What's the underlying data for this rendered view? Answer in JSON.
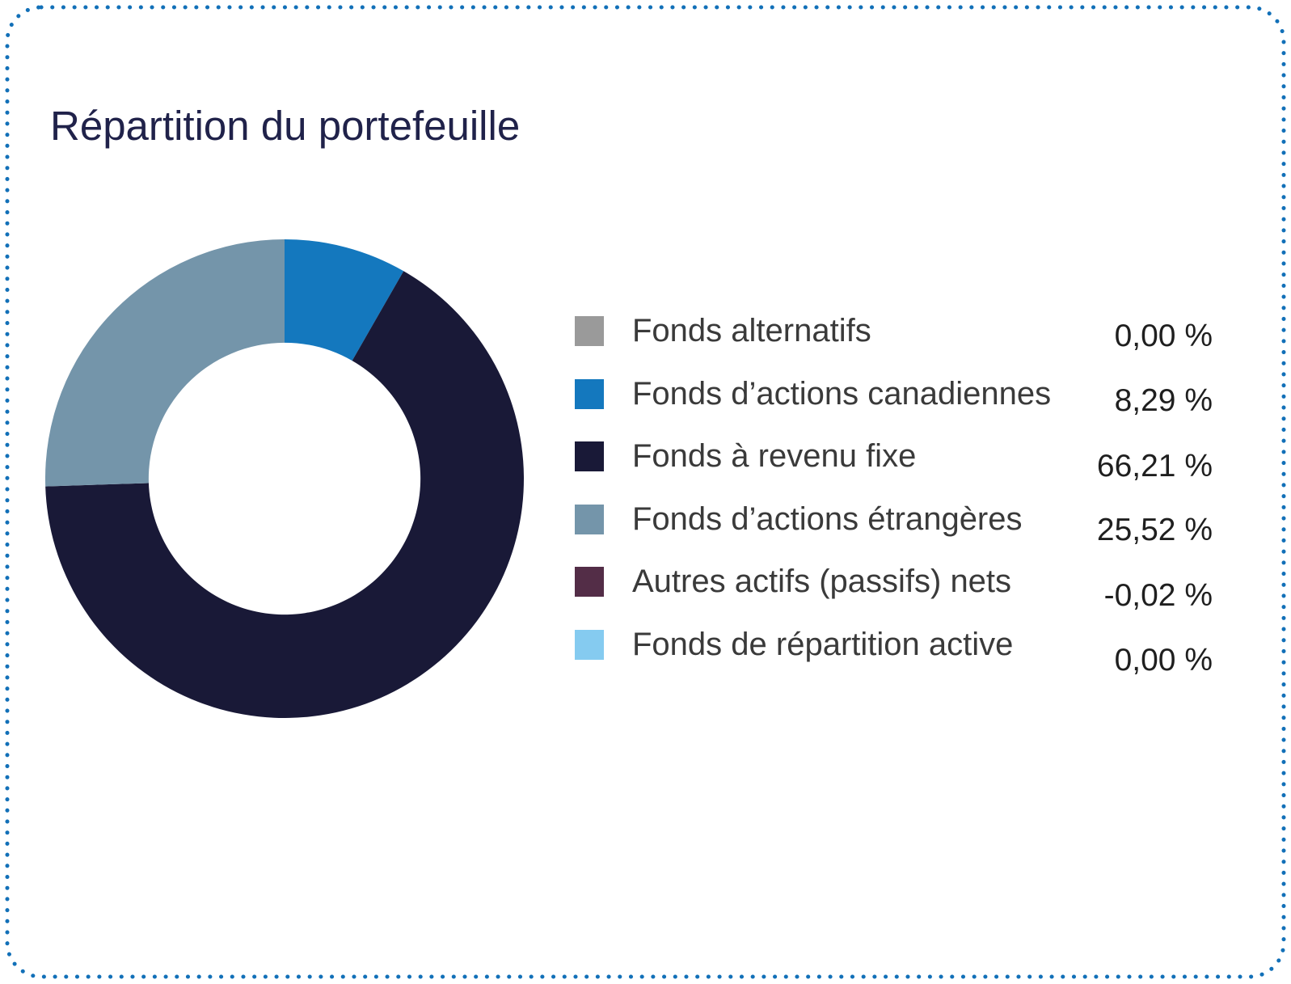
{
  "page": {
    "title": "Répartition du portefeuille"
  },
  "colors": {
    "background": "#ffffff",
    "dotted_border": "#1270b8",
    "title_text": "#20224a",
    "label_text": "#3a3a3a",
    "value_text": "#1f1f1f"
  },
  "chart_data": {
    "type": "pie",
    "subtype": "donut",
    "title": "Répartition du portefeuille",
    "start_angle_deg": 0,
    "direction": "clockwise",
    "inner_radius_ratio": 0.568,
    "legend_position": "right",
    "series": [
      {
        "label": "Fonds alternatifs",
        "value": 0.0,
        "display": "0,00 %",
        "color": "#9a9a9a"
      },
      {
        "label": "Fonds d’actions canadiennes",
        "value": 8.29,
        "display": "8,29 %",
        "color": "#1478be"
      },
      {
        "label": "Fonds à revenu fixe",
        "value": 66.21,
        "display": "66,21 %",
        "color": "#191937"
      },
      {
        "label": "Fonds d’actions étrangères",
        "value": 25.52,
        "display": "25,52 %",
        "color": "#7495aa"
      },
      {
        "label": "Autres actifs (passifs) nets",
        "value": -0.02,
        "display": "-0,02 %",
        "color": "#532d47"
      },
      {
        "label": "Fonds de répartition active",
        "value": 0.0,
        "display": "0,00 %",
        "color": "#85cbf0"
      }
    ]
  }
}
